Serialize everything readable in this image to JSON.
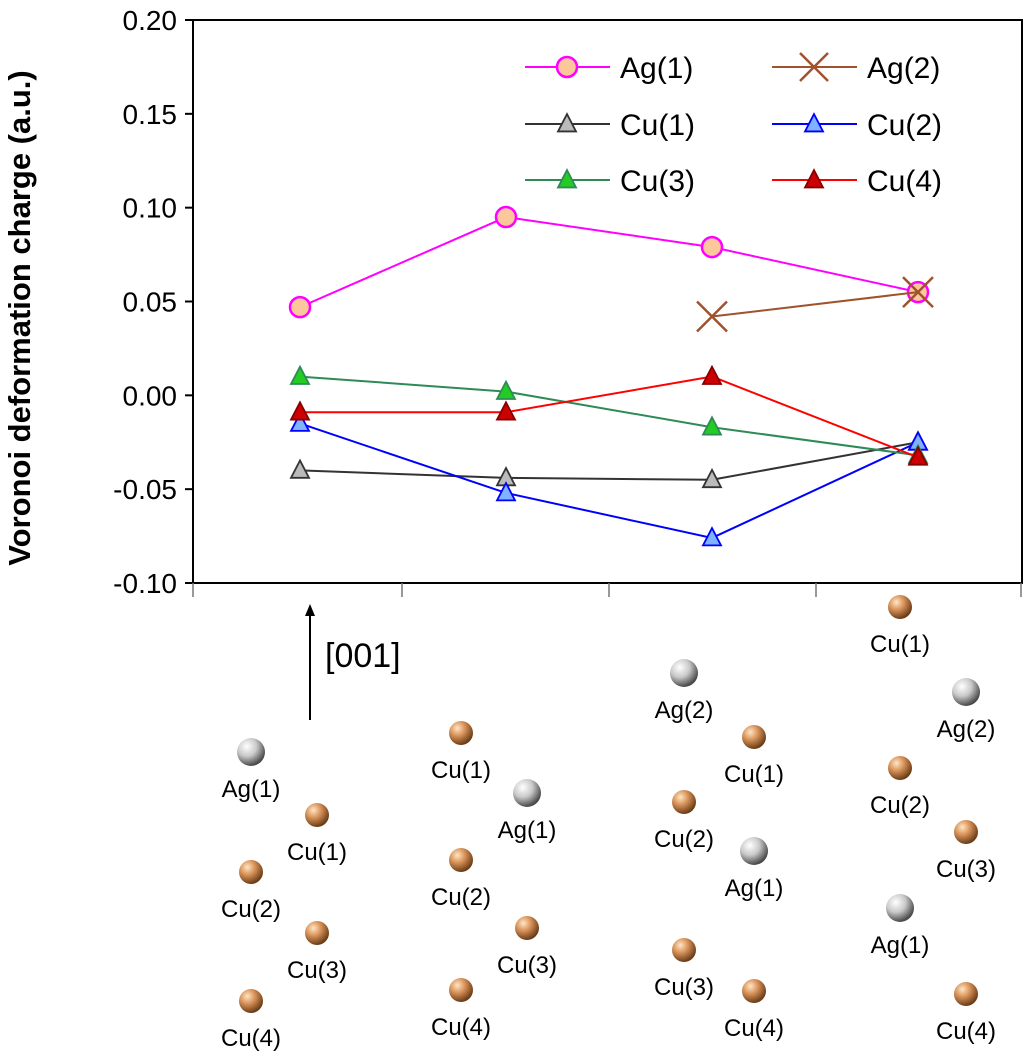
{
  "chart_data": {
    "type": "line",
    "title": "",
    "ylabel": "Voronoi deformation charge (a.u.)",
    "xlabel": "",
    "ylim": [
      -0.1,
      0.2
    ],
    "yticks": [
      "0.20",
      "0.15",
      "0.10",
      "0.05",
      "0.00",
      "-0.05",
      "-0.10"
    ],
    "ytick_values": [
      0.2,
      0.15,
      0.1,
      0.05,
      0.0,
      -0.05,
      -0.1
    ],
    "x_positions": [
      1,
      2,
      3,
      4
    ],
    "grid": false,
    "legend_position": "top-right",
    "series": [
      {
        "name": "Ag(1)",
        "marker": "circle",
        "color": "#ff00ff",
        "fill": "#fcc89b",
        "x": [
          1,
          2,
          3,
          4
        ],
        "y": [
          0.047,
          0.095,
          0.079,
          0.055
        ]
      },
      {
        "name": "Ag(2)",
        "marker": "x",
        "color": "#a0522d",
        "fill": "#a0522d",
        "x": [
          3,
          4
        ],
        "y": [
          0.042,
          0.055
        ]
      },
      {
        "name": "Cu(1)",
        "marker": "triangle",
        "color": "#333333",
        "fill": "#bbbbbb",
        "x": [
          1,
          2,
          3,
          4
        ],
        "y": [
          -0.04,
          -0.044,
          -0.045,
          -0.025
        ]
      },
      {
        "name": "Cu(2)",
        "marker": "triangle",
        "color": "#0000ff",
        "fill": "#7fb2ff",
        "x": [
          1,
          2,
          3,
          4
        ],
        "y": [
          -0.015,
          -0.052,
          -0.076,
          -0.025
        ]
      },
      {
        "name": "Cu(3)",
        "marker": "triangle",
        "color": "#2e8b57",
        "fill": "#22cc22",
        "x": [
          1,
          2,
          3,
          4
        ],
        "y": [
          0.01,
          0.002,
          -0.017,
          -0.032
        ]
      },
      {
        "name": "Cu(4)",
        "marker": "triangle",
        "color": "#ff0000",
        "fill": "#cc0000",
        "x": [
          1,
          2,
          3,
          4
        ],
        "y": [
          -0.009,
          -0.009,
          0.01,
          -0.033
        ]
      }
    ]
  },
  "direction_label": "[001]",
  "structures": [
    [
      {
        "label": "Ag(1)",
        "element": "Ag"
      },
      {
        "label": "Cu(1)",
        "element": "Cu"
      },
      {
        "label": "Cu(2)",
        "element": "Cu"
      },
      {
        "label": "Cu(3)",
        "element": "Cu"
      },
      {
        "label": "Cu(4)",
        "element": "Cu"
      }
    ],
    [
      {
        "label": "Cu(1)",
        "element": "Cu"
      },
      {
        "label": "Ag(1)",
        "element": "Ag"
      },
      {
        "label": "Cu(2)",
        "element": "Cu"
      },
      {
        "label": "Cu(3)",
        "element": "Cu"
      },
      {
        "label": "Cu(4)",
        "element": "Cu"
      }
    ],
    [
      {
        "label": "Ag(2)",
        "element": "Ag"
      },
      {
        "label": "Cu(1)",
        "element": "Cu"
      },
      {
        "label": "Cu(2)",
        "element": "Cu"
      },
      {
        "label": "Ag(1)",
        "element": "Ag"
      },
      {
        "label": "Cu(3)",
        "element": "Cu"
      },
      {
        "label": "Cu(4)",
        "element": "Cu"
      }
    ],
    [
      {
        "label": "Cu(1)",
        "element": "Cu"
      },
      {
        "label": "Ag(2)",
        "element": "Ag"
      },
      {
        "label": "Cu(2)",
        "element": "Cu"
      },
      {
        "label": "Cu(3)",
        "element": "Cu"
      },
      {
        "label": "Ag(1)",
        "element": "Ag"
      },
      {
        "label": "Cu(4)",
        "element": "Cu"
      }
    ]
  ]
}
